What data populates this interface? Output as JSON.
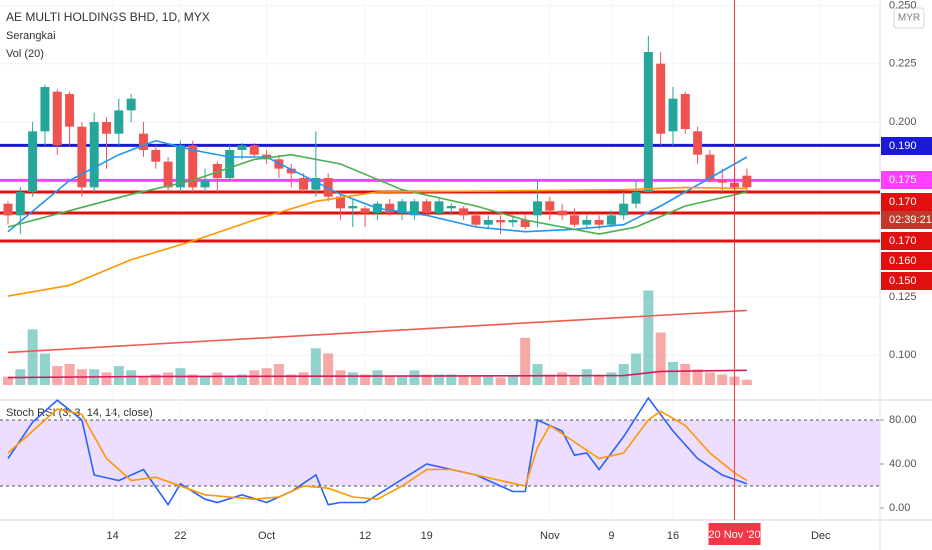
{
  "chart_data": {
    "type": "candlestick",
    "title": "AE MULTI HOLDINGS BHD, 1D, MYX",
    "legend": [
      "Serangkai",
      "Vol (20)"
    ],
    "currency": "MYR",
    "xlim": [
      -0.65,
      70
    ],
    "xticks": [
      {
        "value": 8.5,
        "label": "14"
      },
      {
        "value": 14,
        "label": "22"
      },
      {
        "value": 21,
        "label": "Oct"
      },
      {
        "value": 29,
        "label": "12"
      },
      {
        "value": 34,
        "label": "19"
      },
      {
        "value": 44,
        "label": "Nov"
      },
      {
        "value": 49,
        "label": "9"
      },
      {
        "value": 54,
        "label": "16"
      },
      {
        "value": 66,
        "label": "Dec"
      }
    ],
    "cursor": {
      "value": 59,
      "label": "20 Nov '20"
    },
    "ylim": [
      0.086,
      0.2523
    ],
    "yticks": [
      {
        "value": 0.25,
        "label": "0.250"
      },
      0.225,
      {
        "value": 0.2,
        "label": "0.200"
      },
      0.125,
      {
        "value": 0.1,
        "label": "0.100"
      }
    ],
    "grid": true,
    "up_color": "#26a69a",
    "down_color": "#ef5350",
    "candles": [
      [
        0.165,
        0.166,
        0.156,
        0.16
      ],
      [
        0.16,
        0.172,
        0.152,
        0.17
      ],
      [
        0.17,
        0.2,
        0.168,
        0.196
      ],
      [
        0.196,
        0.216,
        0.19,
        0.215
      ],
      [
        0.213,
        0.214,
        0.186,
        0.19
      ],
      [
        0.212,
        0.213,
        0.19,
        0.198
      ],
      [
        0.198,
        0.2,
        0.168,
        0.172
      ],
      [
        0.172,
        0.204,
        0.17,
        0.2
      ],
      [
        0.2,
        0.202,
        0.18,
        0.195
      ],
      [
        0.195,
        0.21,
        0.19,
        0.205
      ],
      [
        0.205,
        0.212,
        0.2,
        0.21
      ],
      [
        0.195,
        0.2,
        0.185,
        0.188
      ],
      [
        0.188,
        0.19,
        0.18,
        0.183
      ],
      [
        0.183,
        0.185,
        0.17,
        0.172
      ],
      [
        0.172,
        0.192,
        0.17,
        0.19
      ],
      [
        0.19,
        0.192,
        0.17,
        0.172
      ],
      [
        0.172,
        0.18,
        0.17,
        0.175
      ],
      [
        0.182,
        0.183,
        0.17,
        0.176
      ],
      [
        0.176,
        0.19,
        0.175,
        0.188
      ],
      [
        0.188,
        0.191,
        0.184,
        0.19
      ],
      [
        0.19,
        0.191,
        0.185,
        0.186
      ],
      [
        0.186,
        0.188,
        0.182,
        0.184
      ],
      [
        0.184,
        0.186,
        0.176,
        0.18
      ],
      [
        0.18,
        0.182,
        0.172,
        0.178
      ],
      [
        0.176,
        0.178,
        0.17,
        0.171
      ],
      [
        0.171,
        0.196,
        0.168,
        0.176
      ],
      [
        0.176,
        0.178,
        0.166,
        0.168
      ],
      [
        0.168,
        0.17,
        0.158,
        0.163
      ],
      [
        0.163,
        0.167,
        0.155,
        0.164
      ],
      [
        0.163,
        0.164,
        0.155,
        0.161
      ],
      [
        0.161,
        0.166,
        0.158,
        0.165
      ],
      [
        0.165,
        0.167,
        0.16,
        0.161
      ],
      [
        0.161,
        0.167,
        0.158,
        0.166
      ],
      [
        0.16,
        0.167,
        0.158,
        0.166
      ],
      [
        0.166,
        0.167,
        0.16,
        0.161
      ],
      [
        0.161,
        0.167,
        0.16,
        0.166
      ],
      [
        0.163,
        0.165,
        0.16,
        0.164
      ],
      [
        0.163,
        0.164,
        0.158,
        0.16
      ],
      [
        0.16,
        0.161,
        0.155,
        0.156
      ],
      [
        0.156,
        0.16,
        0.154,
        0.158
      ],
      [
        0.158,
        0.16,
        0.152,
        0.157
      ],
      [
        0.157,
        0.16,
        0.155,
        0.158
      ],
      [
        0.158,
        0.16,
        0.154,
        0.155
      ],
      [
        0.16,
        0.175,
        0.155,
        0.166
      ],
      [
        0.166,
        0.168,
        0.158,
        0.162
      ],
      [
        0.162,
        0.165,
        0.158,
        0.16
      ],
      [
        0.16,
        0.163,
        0.155,
        0.156
      ],
      [
        0.156,
        0.16,
        0.154,
        0.158
      ],
      [
        0.158,
        0.16,
        0.154,
        0.156
      ],
      [
        0.156,
        0.162,
        0.155,
        0.16
      ],
      [
        0.16,
        0.17,
        0.158,
        0.165
      ],
      [
        0.165,
        0.175,
        0.163,
        0.17
      ],
      [
        0.17,
        0.237,
        0.17,
        0.23
      ],
      [
        0.225,
        0.23,
        0.19,
        0.195
      ],
      [
        0.196,
        0.215,
        0.19,
        0.21
      ],
      [
        0.212,
        0.213,
        0.195,
        0.197
      ],
      [
        0.196,
        0.198,
        0.182,
        0.186
      ],
      [
        0.186,
        0.188,
        0.174,
        0.175
      ],
      [
        0.175,
        0.18,
        0.17,
        0.174
      ],
      [
        0.174,
        0.178,
        0.17,
        0.172
      ],
      [
        0.177,
        0.18,
        0.17,
        0.172
      ]
    ],
    "lines": [
      {
        "color": "#2196f3",
        "x": [
          0,
          5,
          9,
          12,
          15,
          18,
          21,
          24,
          27,
          30,
          34,
          38,
          42,
          46,
          50,
          53,
          56,
          60
        ],
        "values": [
          0.153,
          0.175,
          0.186,
          0.192,
          0.188,
          0.185,
          0.185,
          0.177,
          0.169,
          0.163,
          0.16,
          0.155,
          0.153,
          0.154,
          0.156,
          0.164,
          0.173,
          0.185
        ]
      },
      {
        "color": "#4caf50",
        "x": [
          0,
          5,
          10,
          15,
          20,
          23,
          27,
          32,
          38,
          42,
          48,
          51,
          55,
          60
        ],
        "values": [
          0.155,
          0.162,
          0.169,
          0.175,
          0.184,
          0.186,
          0.182,
          0.171,
          0.164,
          0.158,
          0.152,
          0.155,
          0.164,
          0.17
        ]
      },
      {
        "color": "#ff9800",
        "x": [
          0,
          5,
          10,
          15,
          20,
          25,
          30,
          40,
          50,
          55,
          60
        ],
        "values": [
          0.1254,
          0.13,
          0.141,
          0.149,
          0.158,
          0.166,
          0.17,
          0.1705,
          0.171,
          0.172,
          0.1715
        ]
      }
    ],
    "hlines": [
      {
        "value": 0.19,
        "color": "#1a1ad6"
      },
      {
        "value": 0.175,
        "color": "#ff40ff"
      },
      {
        "value": 0.17,
        "color": "#e01010"
      },
      {
        "value": 0.161,
        "color": "#e01010"
      },
      {
        "value": 0.149,
        "color": "#e01010"
      }
    ],
    "price_labels": [
      {
        "label": "0.190",
        "color": "#1a1ad6"
      },
      {
        "label": "0.175",
        "color": "#ff40ff"
      },
      {
        "label": "0.170",
        "color": "#e01010"
      },
      {
        "label": "02:39:21",
        "color": "#c0392b"
      },
      {
        "label": "0.170",
        "color": "#e01010"
      },
      {
        "label": "0.160",
        "color": "#e01010"
      },
      {
        "label": "0.150",
        "color": "#e01010"
      }
    ],
    "volume": {
      "ylim": [
        0,
        100
      ],
      "values": [
        8,
        15,
        53,
        30,
        18,
        20,
        15,
        15,
        12,
        18,
        14,
        8,
        10,
        12,
        16,
        10,
        8,
        12,
        8,
        10,
        14,
        16,
        20,
        10,
        12,
        35,
        30,
        14,
        12,
        10,
        14,
        8,
        8,
        14,
        10,
        10,
        10,
        9,
        8,
        8,
        7,
        9,
        45,
        20,
        10,
        12,
        8,
        15,
        10,
        12,
        20,
        30,
        90,
        50,
        22,
        20,
        15,
        12,
        10,
        8,
        5
      ],
      "lines": [
        {
          "color": "#f05a50",
          "x": [
            0,
            60
          ],
          "values": [
            31,
            71
          ]
        },
        {
          "color": "#d81b60",
          "x": [
            0,
            10,
            50,
            53,
            60
          ],
          "values": [
            7,
            8,
            9,
            13,
            14
          ]
        }
      ]
    },
    "stoch": {
      "title": "Stoch RSI (3, 3, 14, 14, close)",
      "ylim": [
        -9.1,
        98.2
      ],
      "yticks": [
        {
          "value": 80,
          "label": "80.00"
        },
        {
          "value": 40,
          "label": "40.00"
        },
        {
          "value": 0,
          "label": "0.00"
        }
      ],
      "bands": [
        20,
        80
      ],
      "lines": [
        {
          "color": "#2962ff",
          "x": [
            0,
            2,
            4,
            6,
            7,
            9,
            11,
            13,
            14,
            16,
            17,
            19,
            21,
            23,
            25,
            26,
            27,
            29,
            34,
            38,
            41,
            42,
            43,
            45,
            46,
            47,
            48,
            50,
            52,
            54,
            56,
            58,
            60
          ],
          "values": [
            45,
            78,
            98,
            80,
            30,
            25,
            35,
            3,
            22,
            8,
            5,
            12,
            5,
            15,
            30,
            3,
            5,
            5,
            40,
            30,
            15,
            15,
            80,
            70,
            48,
            50,
            35,
            65,
            100,
            70,
            45,
            30,
            22
          ]
        },
        {
          "color": "#ff9800",
          "x": [
            0,
            2,
            4,
            6,
            8,
            10,
            12,
            14,
            16,
            18,
            20,
            22,
            24,
            26,
            28,
            30,
            32,
            34,
            36,
            38,
            40,
            42,
            43,
            44,
            46,
            48,
            50,
            52,
            53,
            55,
            57,
            59,
            60
          ],
          "values": [
            50,
            70,
            90,
            85,
            45,
            25,
            28,
            20,
            12,
            10,
            8,
            10,
            20,
            18,
            10,
            8,
            20,
            35,
            35,
            30,
            25,
            20,
            55,
            75,
            60,
            45,
            50,
            80,
            88,
            75,
            50,
            32,
            25
          ]
        }
      ]
    }
  }
}
